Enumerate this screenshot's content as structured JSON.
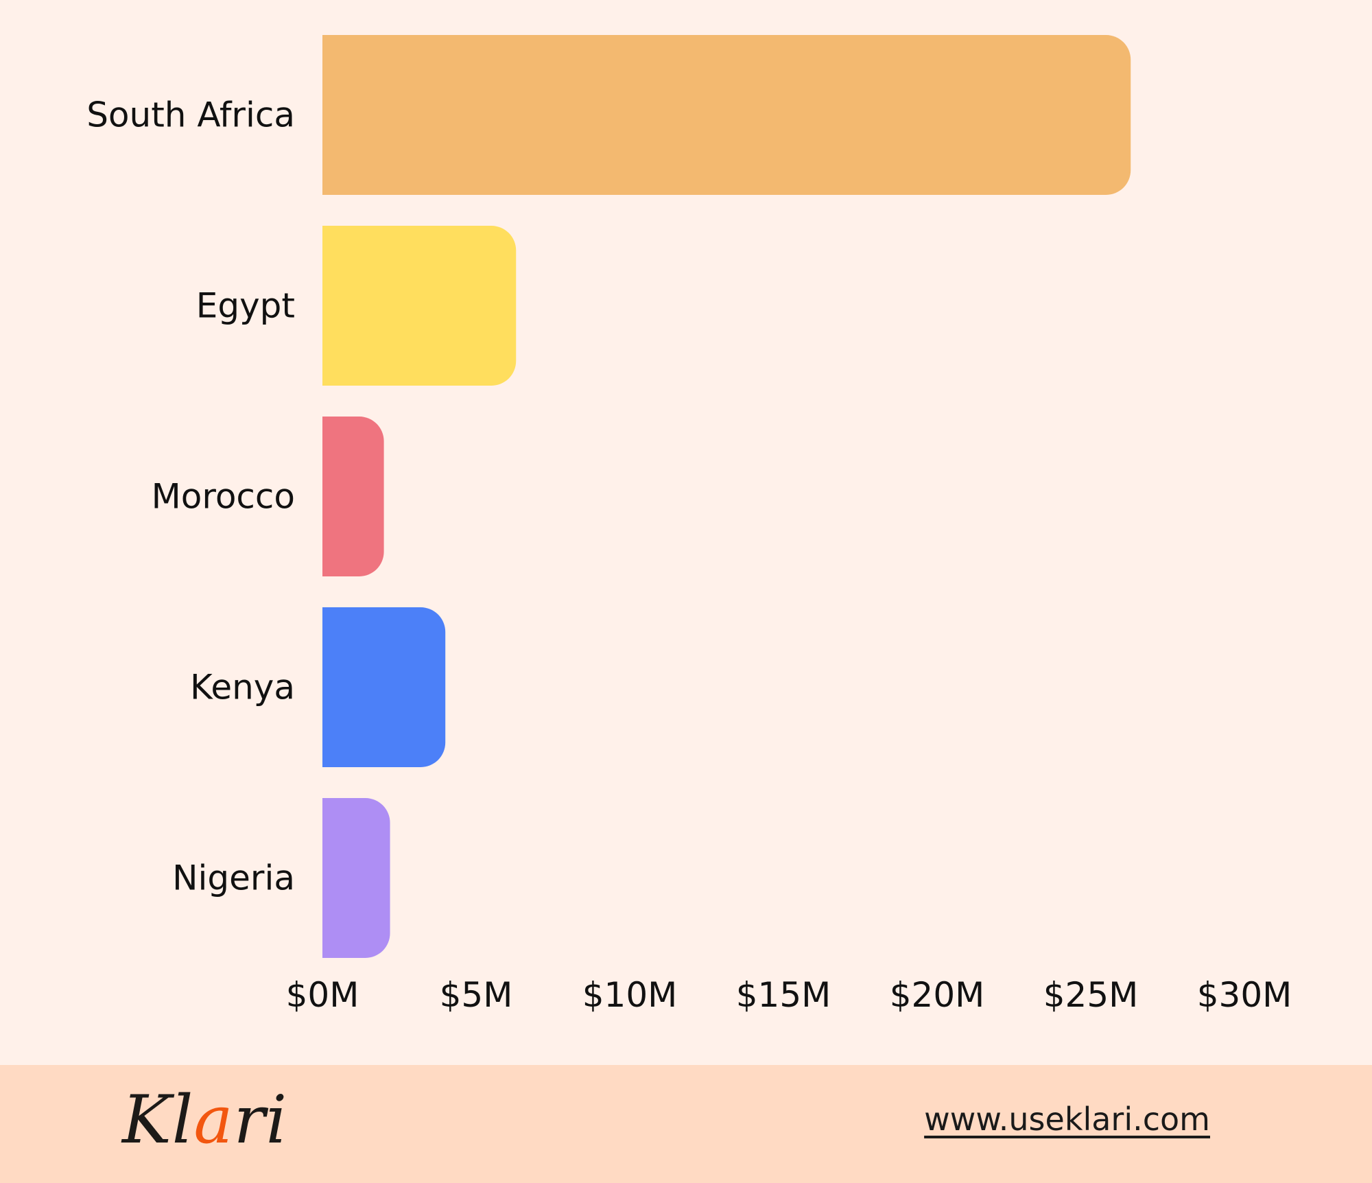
{
  "chart_data": {
    "type": "bar",
    "orientation": "horizontal",
    "categories": [
      "South Africa",
      "Egypt",
      "Morocco",
      "Kenya",
      "Nigeria"
    ],
    "values": [
      26.3,
      6.3,
      2.0,
      4.0,
      2.2
    ],
    "colors": [
      "#F3B970",
      "#FFDE5E",
      "#EF747F",
      "#4C80F8",
      "#AE8EF4"
    ],
    "xlim": [
      0,
      30
    ],
    "x_ticks": [
      0,
      5,
      10,
      15,
      20,
      25,
      30
    ],
    "x_tick_labels": [
      "$0M",
      "$5M",
      "$10M",
      "$15M",
      "$20M",
      "$25M",
      "$30M"
    ],
    "xlabel": "",
    "ylabel": "",
    "title": "",
    "grid": false,
    "legend": "none"
  },
  "footer": {
    "logo": {
      "before": "Kl",
      "accent": "a",
      "after": "ri",
      "accent_color": "#F2560F"
    },
    "link_text": "www.useklari.com"
  }
}
